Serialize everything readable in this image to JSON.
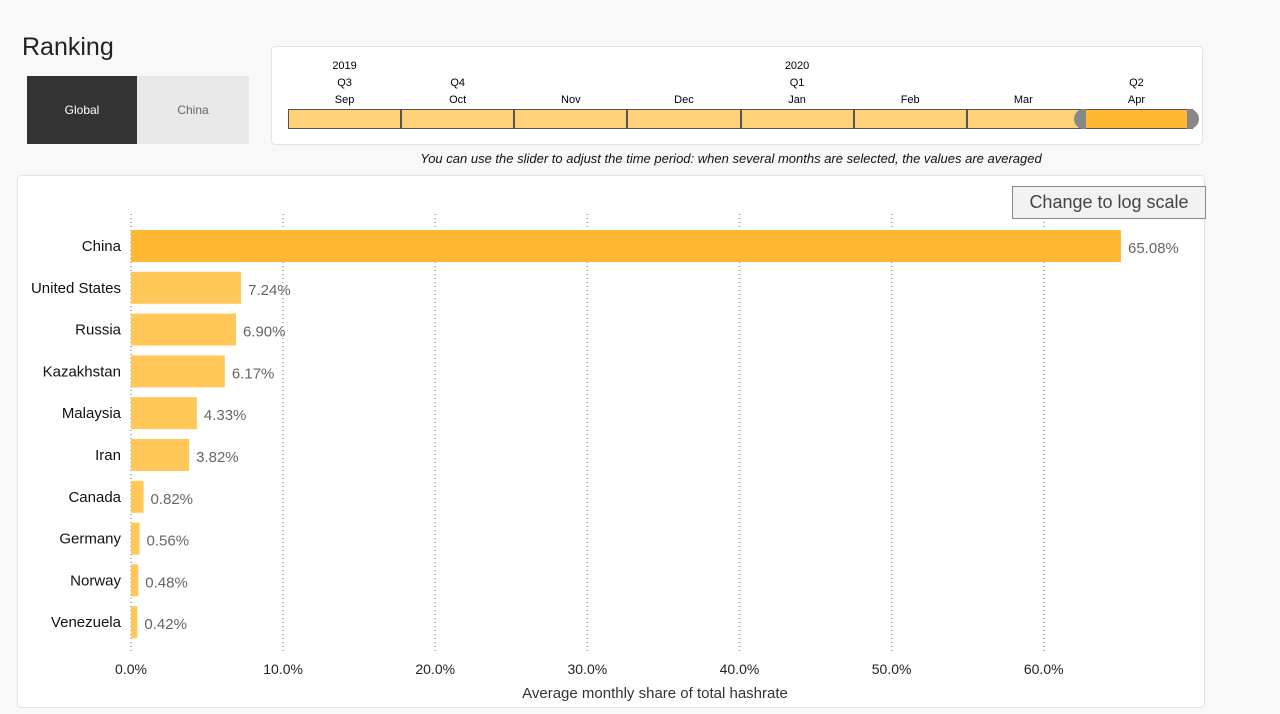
{
  "page": {
    "title": "Ranking",
    "toggle": {
      "global_label": "Global",
      "china_label": "China",
      "selected": "Global"
    },
    "slider": {
      "labels": [
        {
          "year": "2019",
          "quarter": "Q3",
          "month": "Sep"
        },
        {
          "year": "",
          "quarter": "Q4",
          "month": "Oct"
        },
        {
          "year": "",
          "quarter": "",
          "month": "Nov"
        },
        {
          "year": "",
          "quarter": "",
          "month": "Dec"
        },
        {
          "year": "2020",
          "quarter": "Q1",
          "month": "Jan"
        },
        {
          "year": "",
          "quarter": "",
          "month": "Feb"
        },
        {
          "year": "",
          "quarter": "",
          "month": "Mar"
        },
        {
          "year": "",
          "quarter": "Q2",
          "month": "Apr"
        }
      ],
      "selected_months": [
        "Apr"
      ],
      "note": "You can use the slider to adjust the time period: when several months are selected, the values are averaged"
    },
    "log_scale_button": "Change to log scale"
  },
  "chart_data": {
    "type": "bar",
    "orientation": "horizontal",
    "categories": [
      "China",
      "United States",
      "Russia",
      "Kazakhstan",
      "Malaysia",
      "Iran",
      "Canada",
      "Germany",
      "Norway",
      "Venezuela"
    ],
    "values": [
      65.08,
      7.24,
      6.9,
      6.17,
      4.33,
      3.82,
      0.82,
      0.56,
      0.48,
      0.42
    ],
    "value_labels": [
      "65.08%",
      "7.24%",
      "6.90%",
      "6.17%",
      "4.33%",
      "3.82%",
      "0.82%",
      "0.56%",
      "0.48%",
      "0.42%"
    ],
    "xticks": [
      0,
      10,
      20,
      30,
      40,
      50,
      60
    ],
    "xtick_labels": [
      "0.0%",
      "10.0%",
      "20.0%",
      "30.0%",
      "40.0%",
      "50.0%",
      "60.0%"
    ],
    "xlim": [
      0,
      65.08
    ],
    "xlabel": "Average monthly share of total hashrate",
    "grid": "vertical dotted",
    "colors": {
      "highlight": "#ffb833",
      "bar": "#ffc858",
      "slider_fill": "#ffd27a"
    }
  }
}
